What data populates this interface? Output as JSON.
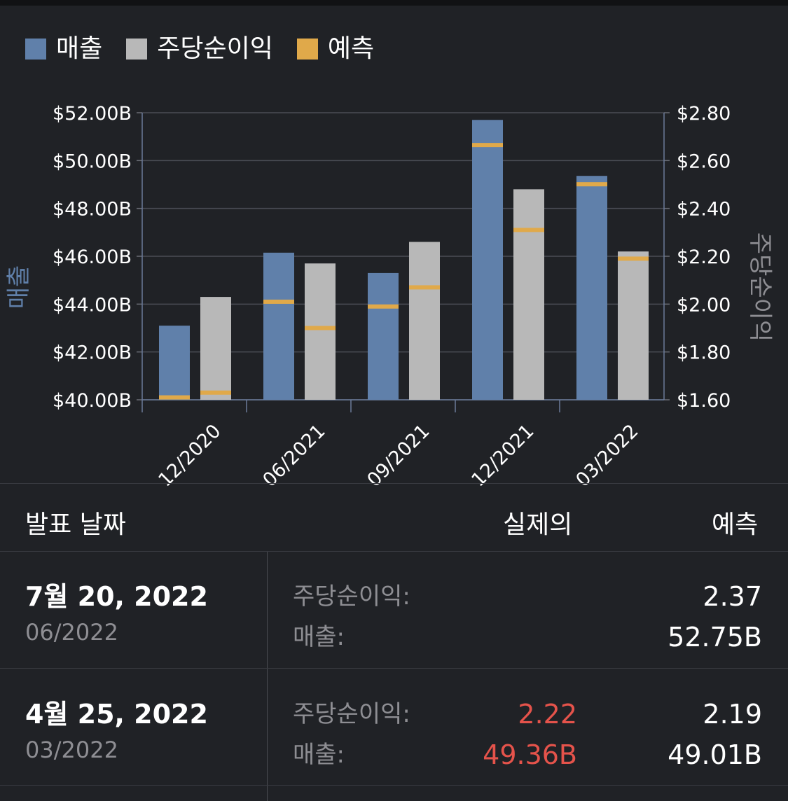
{
  "legend": [
    {
      "label": "매출",
      "color": "#6080aa"
    },
    {
      "label": "주당순이익",
      "color": "#b8b8b8"
    },
    {
      "label": "예측",
      "color": "#e0a94a"
    }
  ],
  "chart_data": {
    "type": "bar",
    "categories": [
      "12/2020",
      "06/2021",
      "09/2021",
      "12/2021",
      "03/2022"
    ],
    "series": [
      {
        "name": "매출",
        "axis": "left",
        "values": [
          43.1,
          46.15,
          45.3,
          51.7,
          49.36
        ],
        "color": "#6080aa"
      },
      {
        "name": "주당순이익",
        "axis": "right",
        "values": [
          2.03,
          2.17,
          2.26,
          2.48,
          2.22
        ],
        "color": "#b8b8b8"
      }
    ],
    "estimates": {
      "name": "예측",
      "color": "#e0a94a",
      "revenue": [
        40.1,
        44.1,
        43.9,
        50.65,
        49.01
      ],
      "eps": [
        1.63,
        1.9,
        2.07,
        2.31,
        2.19
      ]
    },
    "ylabel": "매출",
    "ylabel_right": "주당순이익",
    "ylim": [
      40,
      52
    ],
    "ylim_right": [
      1.6,
      2.8
    ],
    "yticks": [
      "$40.00B",
      "$42.00B",
      "$44.00B",
      "$46.00B",
      "$48.00B",
      "$50.00B",
      "$52.00B"
    ],
    "yticks_right": [
      "$1.60",
      "$1.80",
      "$2.00",
      "$2.20",
      "$2.40",
      "$2.60",
      "$2.80"
    ],
    "grid": true,
    "legend_position": "top-left"
  },
  "table": {
    "headers": {
      "date": "발표 날짜",
      "actual": "실제의",
      "estimate": "예측"
    },
    "rows": [
      {
        "date": "7월 20, 2022",
        "period": "06/2022",
        "eps_label": "주당순이익:",
        "rev_label": "매출:",
        "eps_actual": "",
        "eps_est": "2.37",
        "rev_actual": "",
        "rev_est": "52.75B"
      },
      {
        "date": "4월 25, 2022",
        "period": "03/2022",
        "eps_label": "주당순이익:",
        "rev_label": "매출:",
        "eps_actual": "2.22",
        "eps_est": "2.19",
        "rev_actual": "49.36B",
        "rev_est": "49.01B"
      }
    ]
  }
}
